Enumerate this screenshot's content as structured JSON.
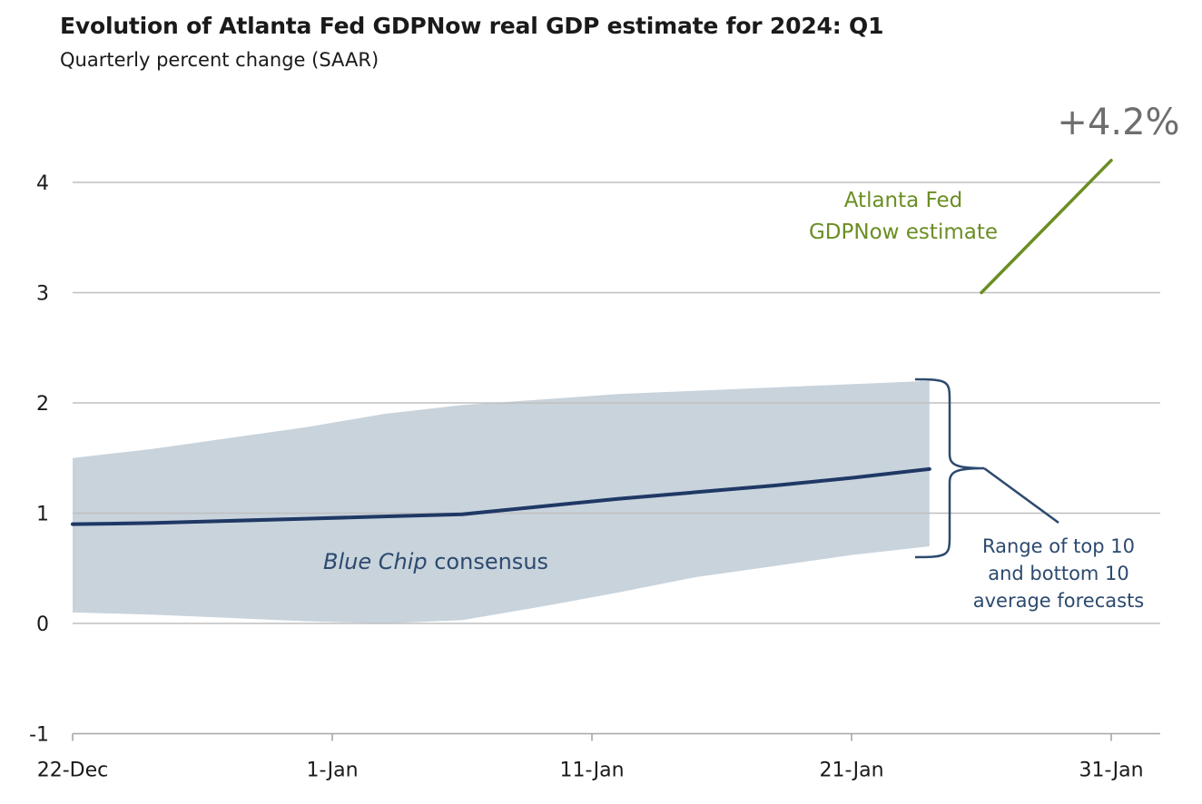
{
  "chart_data": {
    "type": "line",
    "title": "Evolution of Atlanta Fed GDPNow real GDP estimate for 2024: Q1",
    "subtitle": "Quarterly percent change (SAAR)",
    "xlabel": "",
    "ylabel": "",
    "x_ticks": [
      "22-Dec",
      "1-Jan",
      "11-Jan",
      "21-Jan",
      "31-Jan"
    ],
    "y_ticks": [
      -1,
      0,
      1,
      2,
      3,
      4
    ],
    "ylim": [
      -1,
      4.3
    ],
    "xlim": [
      "22-Dec",
      "31-Jan"
    ],
    "grid": "horizontal",
    "series": [
      {
        "name": "Blue Chip consensus",
        "color": "#1f3864",
        "x": [
          "22-Dec",
          "25-Dec",
          "28-Dec",
          "31-Dec",
          "3-Jan",
          "6-Jan",
          "9-Jan",
          "12-Jan",
          "15-Jan",
          "18-Jan",
          "21-Jan",
          "24-Jan"
        ],
        "values": [
          0.9,
          0.91,
          0.93,
          0.95,
          0.97,
          0.99,
          1.06,
          1.13,
          1.19,
          1.25,
          1.32,
          1.4
        ]
      },
      {
        "name": "Atlanta Fed GDPNow estimate",
        "color": "#6b8e23",
        "x": [
          "26-Jan",
          "31-Jan"
        ],
        "values": [
          3.0,
          4.2
        ]
      }
    ],
    "band": {
      "name": "Range of top 10 and bottom 10 average forecasts",
      "color": "#c8d3dc",
      "x": [
        "22-Dec",
        "25-Dec",
        "28-Dec",
        "31-Dec",
        "3-Jan",
        "6-Jan",
        "9-Jan",
        "12-Jan",
        "15-Jan",
        "18-Jan",
        "21-Jan",
        "24-Jan"
      ],
      "upper": [
        1.5,
        1.58,
        1.68,
        1.78,
        1.9,
        1.98,
        2.03,
        2.08,
        2.11,
        2.14,
        2.17,
        2.2
      ],
      "lower": [
        0.1,
        0.08,
        0.05,
        0.02,
        0.0,
        0.03,
        0.15,
        0.28,
        0.42,
        0.52,
        0.62,
        0.7
      ]
    },
    "annotations": {
      "final_value": "+4.2%",
      "gdpnow_label": [
        "Atlanta Fed",
        "GDPNow estimate"
      ],
      "consensus_label_italic": "Blue Chip",
      "consensus_label_rest": " consensus",
      "range_label": [
        "Range of top 10",
        "and bottom 10",
        "average forecasts"
      ]
    }
  }
}
